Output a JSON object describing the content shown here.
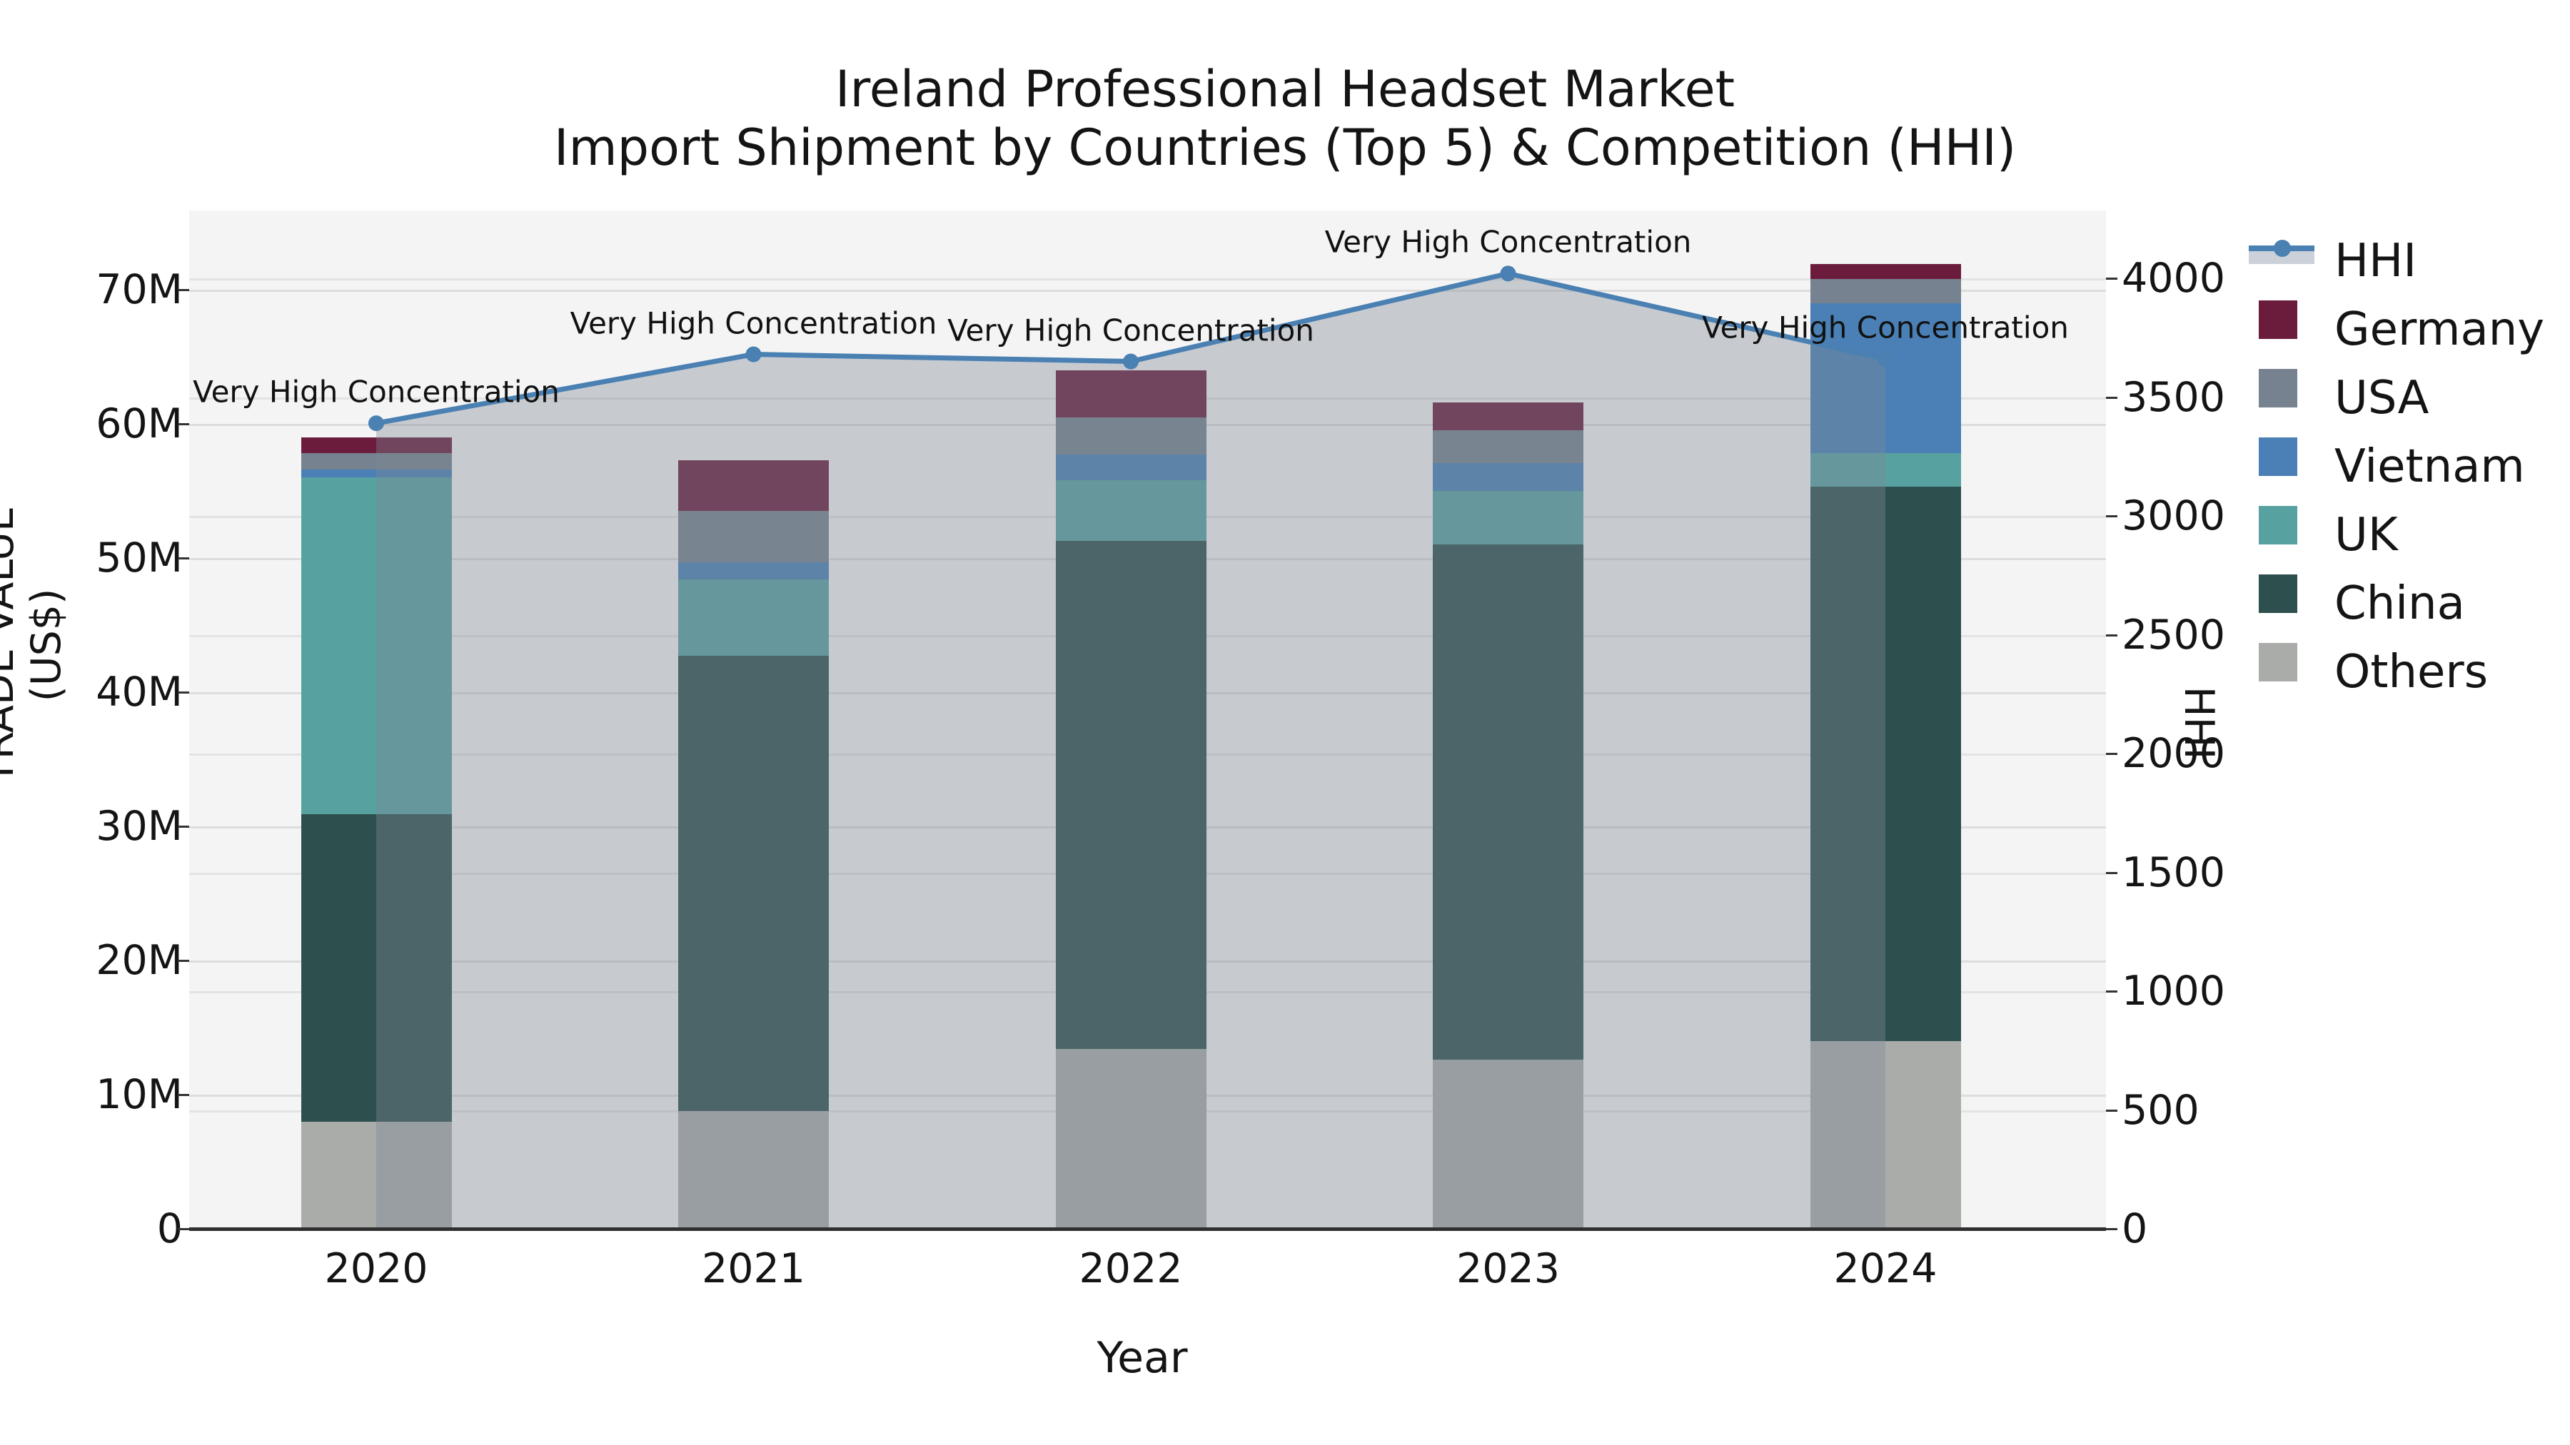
{
  "title": {
    "line1": "Ireland Professional Headset Market",
    "line2": "Import Shipment by Countries (Top 5) & Competition (HHI)"
  },
  "axes": {
    "x": {
      "label": "Year",
      "tick_labels": [
        "2020",
        "2021",
        "2022",
        "2023",
        "2024"
      ]
    },
    "y_left": {
      "label": "TRADE VALUE (US$)",
      "tick_labels": [
        "0",
        "10M",
        "20M",
        "30M",
        "40M",
        "50M",
        "60M",
        "70M"
      ],
      "tick_step_million": 10,
      "max_million": 70
    },
    "y_right": {
      "label": "HHI",
      "tick_labels": [
        "0",
        "500",
        "1000",
        "1500",
        "2000",
        "2500",
        "3000",
        "3500",
        "4000"
      ],
      "tick_step": 500,
      "max": 4000
    }
  },
  "legend": [
    {
      "label": "HHI",
      "type": "line",
      "color": "#4a80b2"
    },
    {
      "label": "Germany",
      "type": "patch",
      "color": "#6b1c3c"
    },
    {
      "label": "USA",
      "type": "patch",
      "color": "#76828f"
    },
    {
      "label": "Vietnam",
      "type": "patch",
      "color": "#4a80b5"
    },
    {
      "label": "UK",
      "type": "patch",
      "color": "#58a1a1"
    },
    {
      "label": "China",
      "type": "patch",
      "color": "#2d4f4e"
    },
    {
      "label": "Others",
      "type": "patch",
      "color": "#aaacaa"
    }
  ],
  "chart_data": {
    "type": "combo-stacked-bar-line",
    "unit": "US$ millions (left axis), HHI index (right axis)",
    "categories": [
      "2020",
      "2021",
      "2022",
      "2023",
      "2024"
    ],
    "bar_series": [
      {
        "name": "Others",
        "color": "#aaacaa",
        "values_million_usd": [
          8.0,
          8.8,
          13.4,
          12.6,
          14.0
        ]
      },
      {
        "name": "China",
        "color": "#2d4f4e",
        "values_million_usd": [
          22.9,
          33.9,
          37.9,
          38.4,
          41.3
        ]
      },
      {
        "name": "UK",
        "color": "#58a1a1",
        "values_million_usd": [
          25.1,
          5.7,
          4.5,
          4.0,
          2.5
        ]
      },
      {
        "name": "Vietnam",
        "color": "#4a80b5",
        "values_million_usd": [
          0.6,
          1.3,
          1.9,
          2.1,
          11.2
        ]
      },
      {
        "name": "USA",
        "color": "#76828f",
        "values_million_usd": [
          1.2,
          3.8,
          2.8,
          2.4,
          1.8
        ]
      },
      {
        "name": "Germany",
        "color": "#6b1c3c",
        "values_million_usd": [
          1.2,
          3.8,
          3.5,
          2.1,
          1.1
        ]
      }
    ],
    "bar_totals_million_usd": [
      59.0,
      57.3,
      64.0,
      61.6,
      71.9
    ],
    "line_series": {
      "name": "HHI",
      "color": "#4a80b2",
      "area_fill_color": "rgba(127,137,150,0.38)",
      "values": [
        3390,
        3680,
        3650,
        4020,
        3660
      ],
      "point_annotations": [
        "Very High Concentration",
        "Very High Concentration",
        "Very High Concentration",
        "Very High Concentration",
        "Very High Concentration"
      ]
    },
    "ylim_left_million": [
      0,
      70
    ],
    "ylim_right": [
      0,
      4000
    ],
    "grid": true,
    "legend_position": "right-outside",
    "plot_background": "#f4f4f4"
  }
}
